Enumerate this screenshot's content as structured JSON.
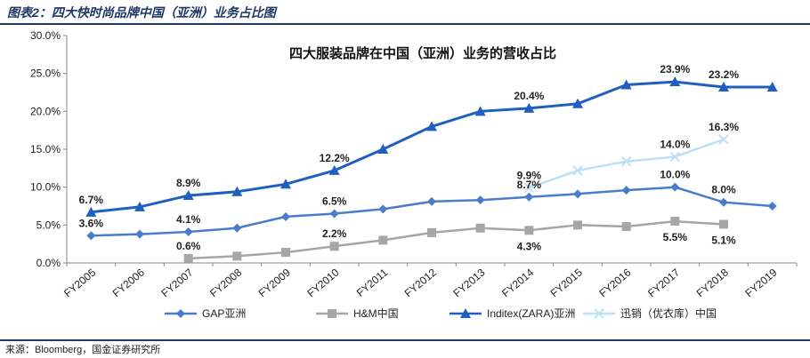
{
  "figure": {
    "title": "图表2：四大快时尚品牌中国（亚洲）业务占比图",
    "source": "来源：Bloomberg，国金证券研究所"
  },
  "chart_data": {
    "type": "line",
    "title": "四大服装品牌在中国（亚洲）业务的营收占比",
    "xlabel": "",
    "ylabel": "",
    "ylim": [
      0,
      30
    ],
    "y_ticks": [
      "0.0%",
      "5.0%",
      "10.0%",
      "15.0%",
      "20.0%",
      "25.0%",
      "30.0%"
    ],
    "categories": [
      "FY2005",
      "FY2006",
      "FY2007",
      "FY2008",
      "FY2009",
      "FY2010",
      "FY2011",
      "FY2012",
      "FY2013",
      "FY2014",
      "FY2015",
      "FY2016",
      "FY2017",
      "FY2018",
      "FY2019"
    ],
    "legend_position": "bottom",
    "grid": false,
    "series": [
      {
        "name": "GAP亚洲",
        "color": "#4a7cc9",
        "marker": "diamond",
        "values": [
          3.6,
          3.8,
          4.1,
          4.6,
          6.1,
          6.5,
          7.1,
          8.1,
          8.3,
          8.7,
          9.1,
          9.6,
          10.0,
          8.0,
          7.5
        ],
        "labels": {
          "0": "3.6%",
          "2": "4.1%",
          "5": "6.5%",
          "9": "8.7%",
          "12": "10.0%",
          "13": "8.0%"
        }
      },
      {
        "name": "H&M中国",
        "color": "#a6a6a6",
        "marker": "square",
        "values": [
          null,
          null,
          0.6,
          0.9,
          1.4,
          2.2,
          3.0,
          4.0,
          4.6,
          4.3,
          5.0,
          4.8,
          5.5,
          5.1,
          null
        ],
        "labels": {
          "2": "0.6%",
          "5": "2.2%",
          "9": "4.3%",
          "12": "5.5%",
          "13": "5.1%"
        }
      },
      {
        "name": "Inditex(ZARA)亚洲",
        "color": "#1f5fbf",
        "marker": "triangle",
        "values": [
          6.7,
          7.4,
          8.9,
          9.4,
          10.4,
          12.2,
          15.0,
          18.0,
          20.0,
          20.4,
          21.0,
          23.5,
          23.9,
          23.2,
          23.2
        ],
        "labels": {
          "0": "6.7%",
          "2": "8.9%",
          "5": "12.2%",
          "9": "20.4%",
          "12": "23.9%",
          "13": "23.2%"
        }
      },
      {
        "name": "迅销（优衣库）中国",
        "color": "#bde0f5",
        "marker": "x",
        "values": [
          null,
          null,
          null,
          null,
          null,
          null,
          null,
          null,
          null,
          9.9,
          12.2,
          13.4,
          14.0,
          16.3,
          null
        ],
        "labels": {
          "9": "9.9%",
          "12": "14.0%",
          "13": "16.3%"
        }
      }
    ]
  }
}
